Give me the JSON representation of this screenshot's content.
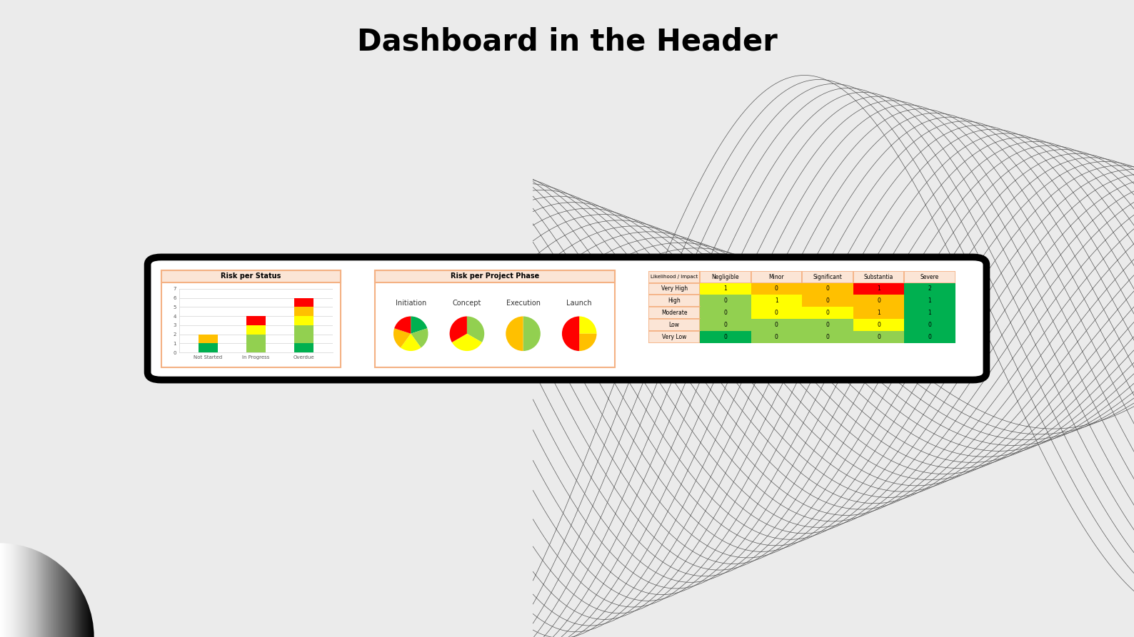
{
  "title": "Dashboard in the Header",
  "chart_data": [
    {
      "type": "bar",
      "title": "Risk per Status",
      "stacked": true,
      "grid": true,
      "categories": [
        "Not Started",
        "In Progress",
        "Overdue"
      ],
      "series": [
        {
          "color": "#00b050",
          "values": [
            1,
            0,
            1
          ]
        },
        {
          "color": "#92d050",
          "values": [
            0,
            2,
            2
          ]
        },
        {
          "color": "#ffff00",
          "values": [
            0,
            1,
            1
          ]
        },
        {
          "color": "#ffc000",
          "values": [
            1,
            0,
            1
          ]
        },
        {
          "color": "#ff0000",
          "values": [
            0,
            1,
            1
          ]
        }
      ],
      "ylim": [
        0,
        7
      ],
      "yticks": [
        0,
        1,
        2,
        3,
        4,
        5,
        6,
        7
      ]
    },
    {
      "type": "pie",
      "title": "Risk per Project Phase",
      "pies": [
        {
          "name": "Initiation",
          "values": [
            1,
            1,
            1,
            1,
            1
          ],
          "colors": [
            "#00b050",
            "#92d050",
            "#ffff00",
            "#ffc000",
            "#ff0000"
          ]
        },
        {
          "name": "Concept",
          "values": [
            1,
            1,
            1
          ],
          "colors": [
            "#92d050",
            "#ffff00",
            "#ff0000"
          ]
        },
        {
          "name": "Execution",
          "values": [
            1,
            1
          ],
          "colors": [
            "#92d050",
            "#ffc000"
          ]
        },
        {
          "name": "Launch",
          "values": [
            1,
            1,
            2
          ],
          "colors": [
            "#ffff00",
            "#ffc000",
            "#ff0000"
          ]
        }
      ]
    },
    {
      "type": "heatmap",
      "title": "Likelihood / Impact",
      "columns": [
        "Negligible",
        "Minor",
        "Significant",
        "Substantia",
        "Severe"
      ],
      "rows": [
        "Very High",
        "High",
        "Moderate",
        "Low",
        "Very Low"
      ],
      "cells": [
        [
          1,
          0,
          0,
          1,
          2
        ],
        [
          0,
          1,
          0,
          0,
          1
        ],
        [
          0,
          0,
          0,
          1,
          1
        ],
        [
          0,
          0,
          0,
          0,
          0
        ],
        [
          0,
          0,
          0,
          0,
          0
        ]
      ],
      "colors": [
        [
          "#ffff00",
          "#ffc000",
          "#ffc000",
          "#ff0000",
          "#00b050"
        ],
        [
          "#92d050",
          "#ffff00",
          "#ffc000",
          "#ffc000",
          "#00b050"
        ],
        [
          "#92d050",
          "#ffff00",
          "#ffff00",
          "#ffc000",
          "#00b050"
        ],
        [
          "#92d050",
          "#92d050",
          "#92d050",
          "#ffff00",
          "#00b050"
        ],
        [
          "#00b050",
          "#92d050",
          "#92d050",
          "#92d050",
          "#00b050"
        ]
      ]
    }
  ]
}
